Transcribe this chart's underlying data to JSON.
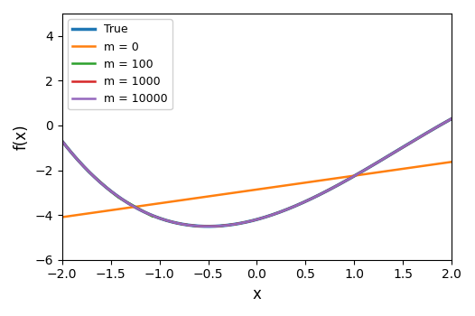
{
  "xlim": [
    -2,
    2
  ],
  "ylim": [
    -6,
    5
  ],
  "xlabel": "x",
  "ylabel": "f(x)",
  "legend_entries": [
    "True",
    "m = 0",
    "m = 100",
    "m = 1000",
    "m = 10000"
  ],
  "colors": {
    "True": "#1f77b4",
    "m = 0": "#ff7f0e",
    "m = 100": "#2ca02c",
    "m = 1000": "#d62728",
    "m = 10000": "#9467bd"
  },
  "linewidths": {
    "True": 2.5,
    "m = 0": 1.8,
    "m = 100": 1.8,
    "m = 1000": 1.8,
    "m = 10000": 1.8
  },
  "n_points": 500,
  "true_coeffs": [
    -0.23077,
    1.0,
    1.17308,
    -4.2
  ]
}
